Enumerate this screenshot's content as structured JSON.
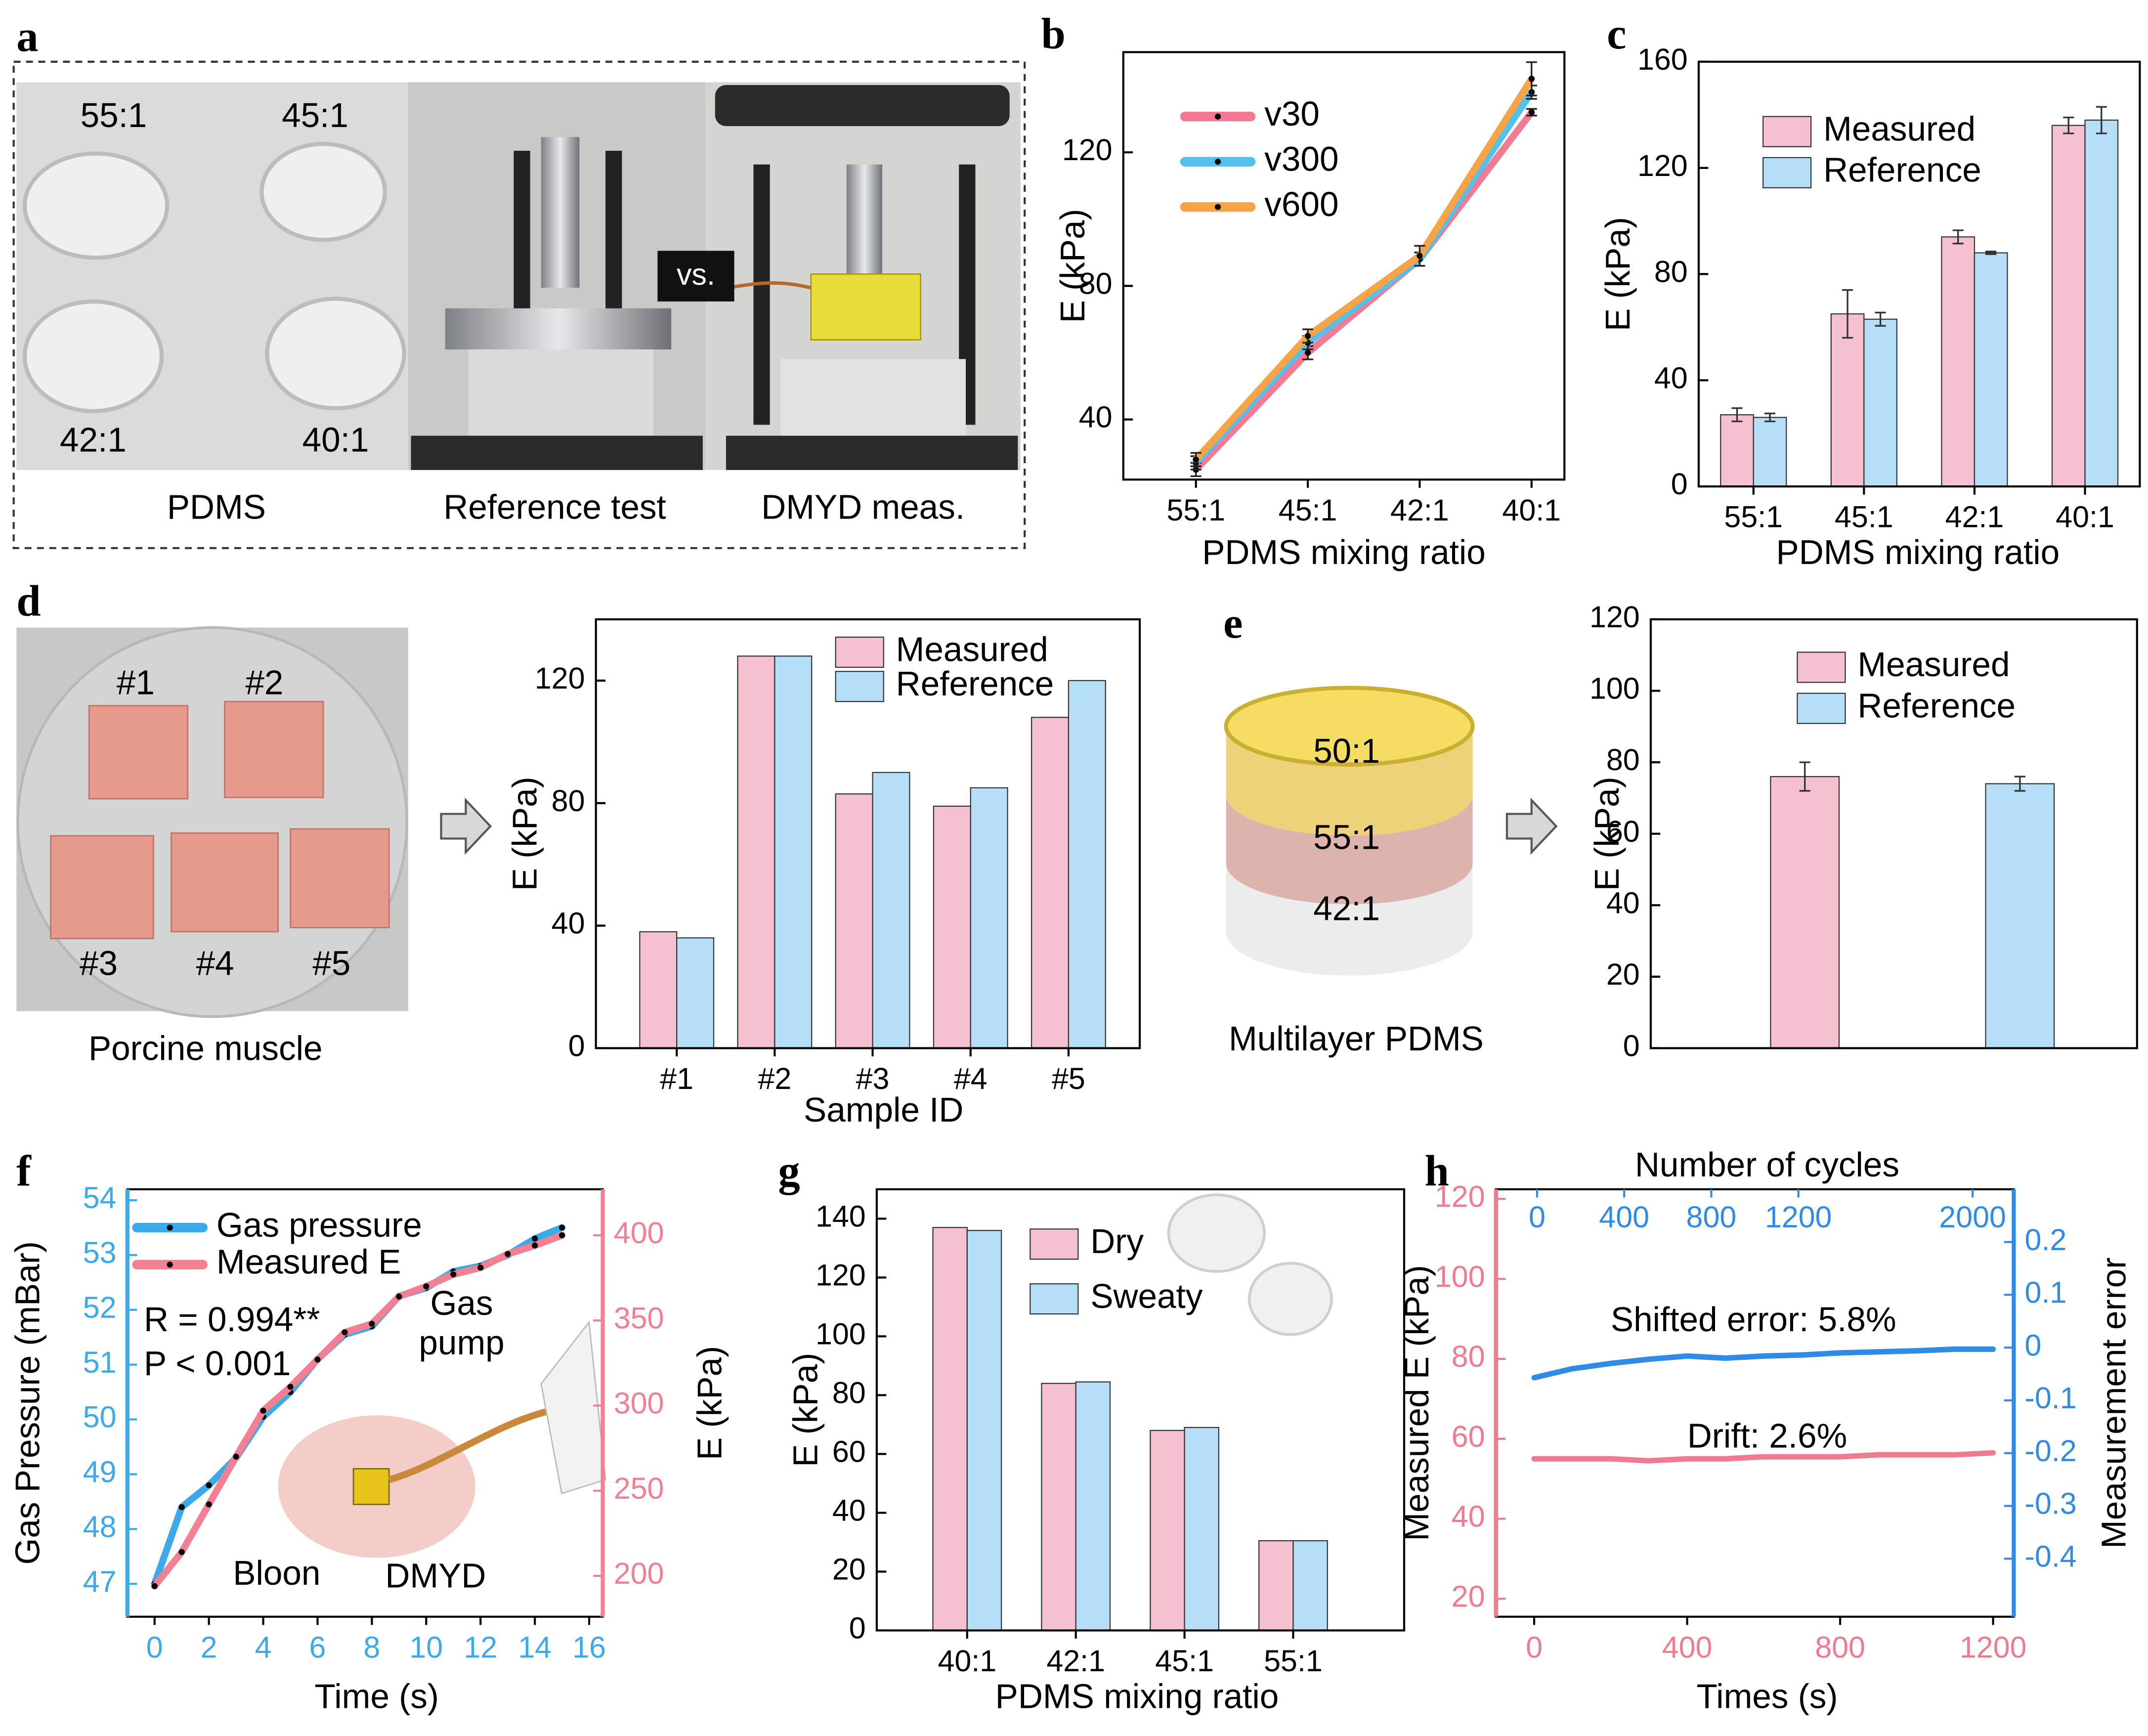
{
  "panels": [
    "a",
    "b",
    "c",
    "d",
    "e",
    "f",
    "g",
    "h"
  ],
  "photos": {
    "a": {
      "labels": [
        "55:1",
        "45:1",
        "42:1",
        "40:1",
        "vs."
      ],
      "captions": [
        "PDMS",
        "Reference test",
        "DMYD meas."
      ]
    },
    "d": {
      "labels": [
        "#1",
        "#2",
        "#3",
        "#4",
        "#5"
      ],
      "caption": "Porcine muscle"
    },
    "e": {
      "labels": [
        "50:1",
        "55:1",
        "42:1"
      ],
      "caption": "Multilayer PDMS"
    }
  },
  "chart_data": [
    {
      "type": "line",
      "categories": [
        "55:1",
        "45:1",
        "42:1",
        "40:1"
      ],
      "xlabel": "PDMS mixing ratio",
      "ylabel": "E (kPa)",
      "ylim": [
        22,
        150
      ],
      "yticks": [
        40,
        80,
        120
      ],
      "markers": true,
      "legend": "upper left",
      "series": [
        {
          "name": "v30",
          "color": "#f07b92",
          "values": [
            25,
            60,
            88,
            132
          ],
          "errors": [
            2,
            2,
            2,
            1
          ]
        },
        {
          "name": "v300",
          "color": "#52c1ee",
          "values": [
            27,
            63,
            88,
            138
          ],
          "errors": [
            2,
            2,
            2,
            2
          ]
        },
        {
          "name": "v600",
          "color": "#f6a445",
          "values": [
            28,
            65,
            89,
            142
          ],
          "errors": [
            2,
            2,
            3,
            5
          ]
        }
      ]
    },
    {
      "type": "bar",
      "categories": [
        "55:1",
        "45:1",
        "42:1",
        "40:1"
      ],
      "xlabel": "PDMS mixing ratio",
      "ylabel": "E (kPa)",
      "ylim": [
        0,
        160
      ],
      "yticks": [
        0,
        40,
        80,
        120,
        160
      ],
      "legend": "upper left",
      "series": [
        {
          "name": "Measured",
          "color": "#f5c1d0",
          "values": [
            27,
            65,
            94,
            136
          ],
          "errors": [
            2.5,
            9,
            2.5,
            3
          ]
        },
        {
          "name": "Reference",
          "color": "#b5dff8",
          "values": [
            26,
            63,
            88,
            138
          ],
          "errors": [
            1.5,
            2.5,
            0.5,
            5
          ]
        }
      ]
    },
    {
      "type": "bar",
      "categories": [
        "#1",
        "#2",
        "#3",
        "#4",
        "#5"
      ],
      "xlabel": "Sample ID",
      "ylabel": "E (kPa)",
      "ylim": [
        0,
        140
      ],
      "yticks": [
        0,
        40,
        80,
        120
      ],
      "legend": "upper center",
      "series": [
        {
          "name": "Measured",
          "color": "#f5c1d0",
          "values": [
            38,
            128,
            83,
            79,
            108
          ]
        },
        {
          "name": "Reference",
          "color": "#b5dff8",
          "values": [
            36,
            128,
            90,
            85,
            120
          ]
        }
      ]
    },
    {
      "type": "bar",
      "categories": [
        null
      ],
      "ylabel": "E (kPa)",
      "ylim": [
        0,
        120
      ],
      "yticks": [
        0,
        20,
        40,
        60,
        80,
        100,
        120
      ],
      "legend": "upper center",
      "series": [
        {
          "name": "Measured",
          "color": "#f5c1d0",
          "values": [
            76
          ],
          "errors": [
            4
          ]
        },
        {
          "name": "Reference",
          "color": "#b5dff8",
          "values": [
            74
          ],
          "errors": [
            2
          ]
        }
      ]
    },
    {
      "type": "line",
      "x": [
        0,
        1,
        2,
        3,
        4,
        5,
        6,
        7,
        8,
        9,
        10,
        11,
        12,
        13,
        14,
        15
      ],
      "xlim": [
        -1,
        16.5
      ],
      "xticks": [
        0,
        2,
        4,
        6,
        8,
        10,
        12,
        14,
        16
      ],
      "xlabel": "Time (s)",
      "ylabel": "Gas Pressure (mBar)",
      "y2label": "E (kPa)",
      "ylim": [
        46.4,
        54.2
      ],
      "yticks": [
        47,
        48,
        49,
        50,
        51,
        52,
        53,
        54
      ],
      "y2lim": [
        176,
        427
      ],
      "y2ticks": [
        200,
        250,
        300,
        350,
        400
      ],
      "markers": true,
      "color_axes": true,
      "legend": "upper left",
      "annotations": [
        "R = 0.994**",
        "P < 0.001",
        "Gas",
        "pump",
        "Bloon",
        "DMYD"
      ],
      "series": [
        {
          "name": "Gas pressure",
          "color": "#3ba9ea",
          "values": [
            47,
            48.4,
            48.8,
            49.3,
            50.05,
            50.5,
            51.1,
            51.55,
            51.7,
            52.25,
            52.4,
            52.7,
            52.8,
            53,
            53.3,
            53.5
          ]
        },
        {
          "name": "Measured E",
          "color": "#f27f92",
          "axis": "y2",
          "values": [
            194,
            214,
            242,
            270,
            297,
            311,
            327,
            343,
            348,
            364,
            370,
            377,
            381,
            389,
            394,
            400
          ]
        }
      ]
    },
    {
      "type": "bar",
      "categories": [
        "40:1",
        "42:1",
        "45:1",
        "55:1"
      ],
      "xlabel": "PDMS mixing ratio",
      "ylabel": "E (kPa)",
      "ylim": [
        0,
        150
      ],
      "yticks": [
        0,
        20,
        40,
        60,
        80,
        100,
        120,
        140
      ],
      "legend": "upper center",
      "series": [
        {
          "name": "Dry",
          "color": "#f5c1d0",
          "values": [
            137,
            84,
            68,
            30.5
          ]
        },
        {
          "name": "Sweaty",
          "color": "#b5dff8",
          "values": [
            136,
            84.5,
            69,
            30.5
          ]
        }
      ]
    },
    {
      "type": "line",
      "x": [
        0,
        100,
        200,
        300,
        400,
        500,
        600,
        700,
        800,
        900,
        1000,
        1100,
        1200
      ],
      "xlim": [
        -100,
        1254
      ],
      "xticks": [
        0,
        400,
        800,
        1200
      ],
      "x2label": "Number of cycles",
      "x2lim": [
        -189,
        2189
      ],
      "x2ticks": [
        0,
        400,
        800,
        1200,
        2000
      ],
      "xlabel": "Times (s)",
      "ylabel": "Measured E (kPa)",
      "y2label": "Measurement error",
      "ylim": [
        15.5,
        122.4
      ],
      "yticks": [
        20,
        40,
        60,
        80,
        100,
        120
      ],
      "y2lim": [
        -0.51,
        0.3
      ],
      "y2ticks": [
        0.2,
        0.1,
        0,
        -0.1,
        -0.2,
        -0.3,
        -0.4
      ],
      "color_axes": true,
      "annotations": [
        "Shifted error: 5.8%",
        "Drift: 2.6%"
      ],
      "series": [
        {
          "color": "#f07b8e",
          "values": [
            55,
            55,
            55,
            54.5,
            55,
            55,
            55.5,
            55.5,
            55.5,
            56,
            56,
            56,
            56.5
          ]
        },
        {
          "color": "#2f8be6",
          "axis": "y2",
          "values": [
            -0.057,
            -0.04,
            -0.03,
            -0.022,
            -0.016,
            -0.02,
            -0.016,
            -0.014,
            -0.01,
            -0.008,
            -0.006,
            -0.003,
            -0.003
          ]
        }
      ]
    }
  ]
}
